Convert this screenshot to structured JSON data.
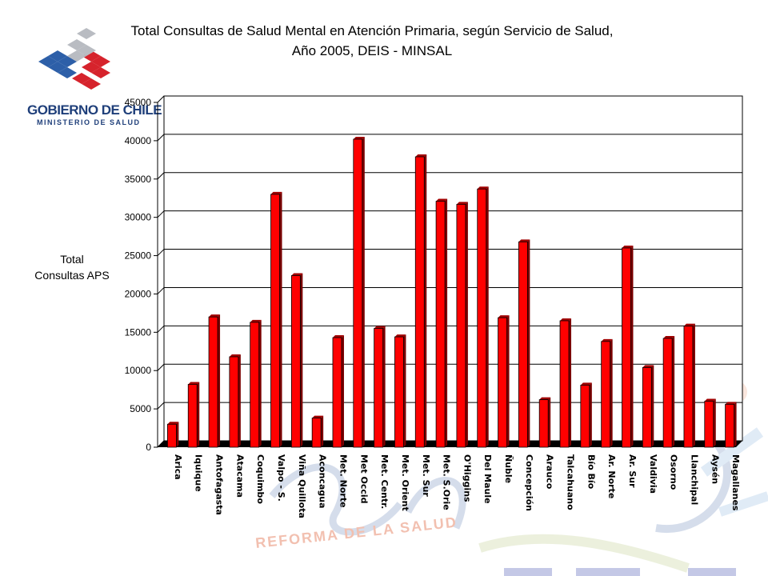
{
  "header": {
    "title_line1": "Total Consultas de Salud Mental en Atención Primaria, según Servicio de Salud,",
    "title_line2": "Año 2005, DEIS - MINSAL"
  },
  "logo": {
    "line1": "GOBIERNO DE CHILE",
    "line2": "MINISTERIO DE SALUD"
  },
  "watermark": {
    "text": "REFORMA DE LA SALUD"
  },
  "chart_data": {
    "type": "bar",
    "title": "Total Consultas de Salud Mental en Atención Primaria, según Servicio de Salud, Año 2005, DEIS - MINSAL",
    "ylabel_line1": "Total",
    "ylabel_line2": "Consultas APS",
    "ylim": [
      0,
      45000
    ],
    "yticks": [
      0,
      5000,
      10000,
      15000,
      20000,
      25000,
      30000,
      35000,
      40000,
      45000
    ],
    "grid": true,
    "bar_color": "#ff0000",
    "categories": [
      "Arica",
      "Iquique",
      "Antofagasta",
      "Atacama",
      "Coquimbo",
      "Valpo - S.",
      "Viña Quillota",
      "Aconcagua",
      "Met. Norte",
      "Met Occid",
      "Met. Centr.",
      "Met. Orient",
      "Met. Sur",
      "Met. S.Orie",
      "O'Higgins",
      "Del Maule",
      "Ñuble",
      "Concepción",
      "Arauco",
      "Talcahuano",
      "Bío Bío",
      "Ar. Norte",
      "Ar. Sur",
      "Valdivia",
      "Osorno",
      "Llanchipal",
      "Aysén",
      "Magallanes"
    ],
    "values": [
      3000,
      8200,
      17000,
      11800,
      16300,
      33000,
      22400,
      3800,
      14300,
      40200,
      15500,
      14400,
      37900,
      32100,
      31700,
      33700,
      16900,
      26800,
      6200,
      16500,
      8100,
      13800,
      26000,
      10400,
      14200,
      15800,
      6000,
      5600
    ]
  }
}
